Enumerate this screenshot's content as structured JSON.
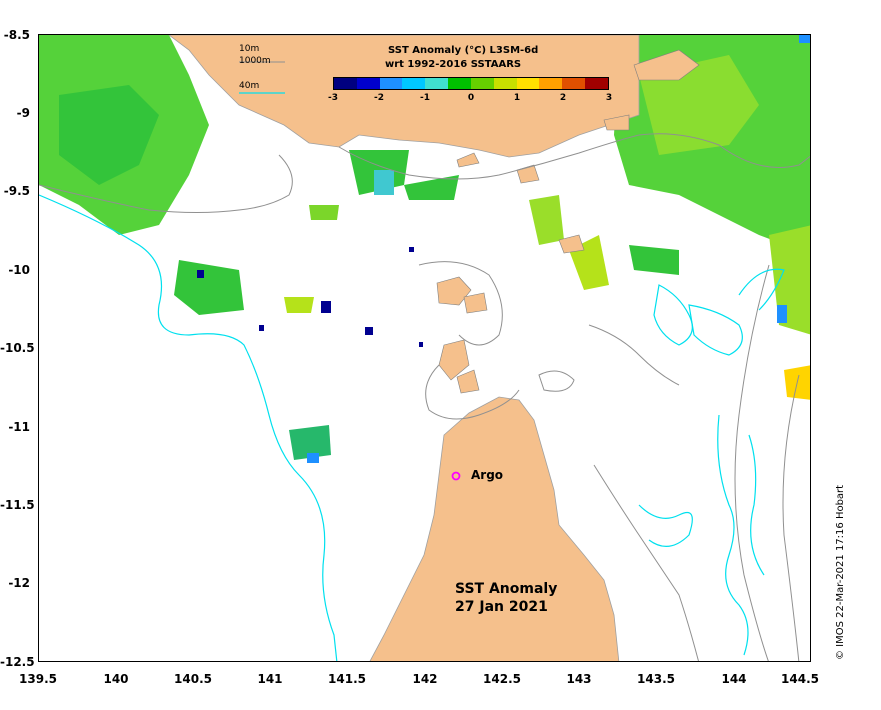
{
  "map": {
    "title_line1": "SST Anomaly (°C) L3SM-6d",
    "title_line2": "wrt 1992-2016 SSTAARS",
    "depth_contours": [
      "10m",
      "1000m",
      "40m"
    ],
    "colorbar_ticks": [
      "-3",
      "-2",
      "-1",
      "0",
      "1",
      "2",
      "3"
    ],
    "colorbar_colors": [
      "#000080",
      "#0000cd",
      "#1e90ff",
      "#00c8ff",
      "#40e0d0",
      "#00c000",
      "#66d000",
      "#c8e000",
      "#ffe000",
      "#ffa000",
      "#e05000",
      "#a00000"
    ],
    "y_ticks": [
      "-8.5",
      "-9",
      "-9.5",
      "-10",
      "-10.5",
      "-11",
      "-11.5",
      "-12",
      "-12.5"
    ],
    "x_ticks": [
      "139.5",
      "140",
      "140.5",
      "141",
      "141.5",
      "142",
      "142.5",
      "143",
      "143.5",
      "144",
      "144.5"
    ],
    "argo_label": "Argo",
    "anomaly_label": "SST Anomaly",
    "date_label": "27 Jan 2021",
    "credit": "© IMOS 22-Mar-2021 17:16 Hobart",
    "land_color": "#f5c08c",
    "contour_10m_color": "#808080",
    "contour_40m_color": "#00e5ee",
    "argo_color": "#ff00ff"
  }
}
